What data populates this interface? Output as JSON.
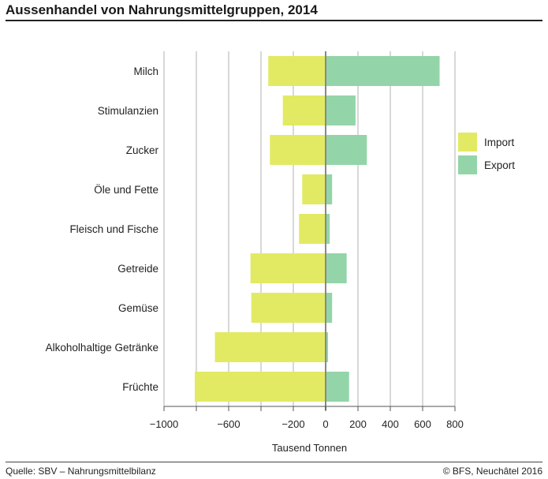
{
  "header": {
    "title": "Aussenhandel von Nahrungsmittelgruppen, 2014"
  },
  "footer": {
    "source": "Quelle: SBV – Nahrungsmittelbilanz",
    "copyright": "© BFS, Neuchâtel 2016"
  },
  "chart_data": {
    "type": "bar",
    "orientation": "horizontal",
    "categories": [
      "Milch",
      "Stimulanzien",
      "Zucker",
      "Öle und Fette",
      "Fleisch und Fische",
      "Getreide",
      "Gemüse",
      "Alkoholhaltige Getränke",
      "Früchte"
    ],
    "series": [
      {
        "name": "Import",
        "color": "#e2ea63",
        "values": [
          -355,
          -265,
          -345,
          -145,
          -165,
          -465,
          -460,
          -685,
          -810
        ]
      },
      {
        "name": "Export",
        "color": "#93d5a8",
        "values": [
          705,
          185,
          255,
          40,
          25,
          130,
          40,
          15,
          145
        ]
      }
    ],
    "xlabel": "Tausend Tonnen",
    "ylabel": "",
    "xlim": [
      -1000,
      800
    ],
    "xticks": [
      -1000,
      -800,
      -600,
      -400,
      -200,
      0,
      200,
      400,
      600,
      800
    ],
    "xtick_labels": [
      "−1000",
      "",
      "−600",
      "",
      "−200",
      "0",
      "200",
      "400",
      "600",
      "800"
    ],
    "grid": true,
    "legend_position": "right",
    "zero_line_color": "#888888",
    "grid_color": "#bdbdbd"
  }
}
